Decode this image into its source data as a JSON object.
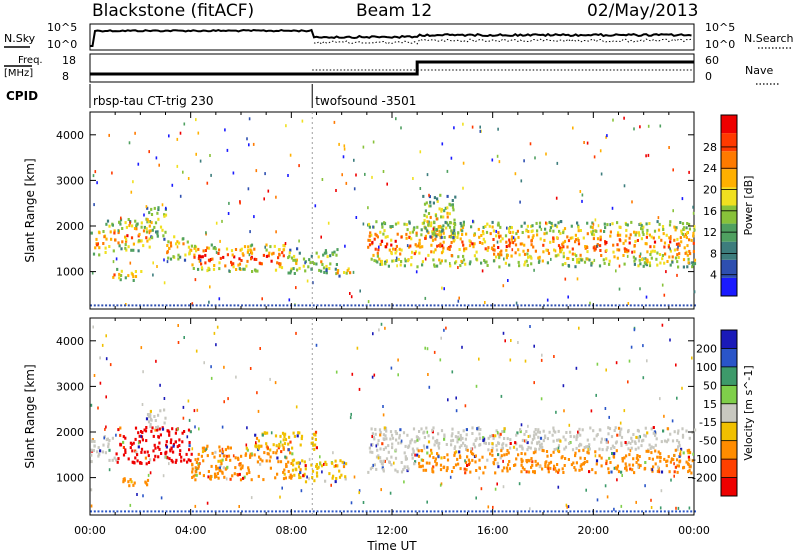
{
  "header": {
    "station": "Blackstone (fitACF)",
    "beam": "Beam 12",
    "date": "02/May/2013"
  },
  "top_panels": {
    "nsky_label": "N.Sky",
    "nsearch_label": "N.Search",
    "freq_label_1": "Freq.",
    "freq_label_2": "[MHz]",
    "nave_label": "Nave",
    "cpid_label": "CPID",
    "noise_ticks_left": [
      "10^5",
      "10^0"
    ],
    "noise_ticks_right": [
      "10^5",
      "10^0"
    ],
    "freq_ticks_left": [
      "18",
      "8"
    ],
    "nave_ticks_right": [
      "60",
      "0"
    ],
    "cpid_segments": [
      {
        "name": "rbsp-tau CT-trig 230",
        "start_hour": 0.0,
        "end_hour": 8.83
      },
      {
        "name": "twofsound -3501",
        "start_hour": 8.83,
        "end_hour": 24.0
      }
    ]
  },
  "chart_data": [
    {
      "type": "heatmap",
      "title": "",
      "xlabel": "Time UT",
      "ylabel": "Slant Range [km]",
      "x_ticks": [
        "00:00",
        "04:00",
        "08:00",
        "12:00",
        "16:00",
        "20:00",
        "00:00"
      ],
      "y_ticks": [
        "1000",
        "2000",
        "3000",
        "4000"
      ],
      "xlim": [
        0,
        24
      ],
      "ylim": [
        180,
        4500
      ],
      "colorbar": {
        "label": "Power [dB]",
        "ticks": [
          "4",
          "8",
          "12",
          "16",
          "20",
          "24",
          "28"
        ],
        "colors": [
          "#1a1aff",
          "#2e4fb0",
          "#3d7d7d",
          "#4fa060",
          "#88c23a",
          "#f0e020",
          "#ffb000",
          "#ff7a00",
          "#ff3a00",
          "#ee0000"
        ]
      },
      "echo_regions": [
        {
          "t0": 0.0,
          "t1": 0.6,
          "r0": 1350,
          "r1": 1900,
          "level": 0.75
        },
        {
          "t0": 0.6,
          "t1": 2.4,
          "r0": 1450,
          "r1": 2150,
          "level": 0.7
        },
        {
          "t0": 2.2,
          "t1": 3.0,
          "r0": 1700,
          "r1": 2450,
          "level": 0.55
        },
        {
          "t0": 3.0,
          "t1": 4.0,
          "r0": 1250,
          "r1": 1800,
          "level": 0.7
        },
        {
          "t0": 4.0,
          "t1": 7.8,
          "r0": 1000,
          "r1": 1600,
          "level": 0.85
        },
        {
          "t0": 7.8,
          "t1": 9.8,
          "r0": 950,
          "r1": 1500,
          "level": 0.5
        },
        {
          "t0": 0.8,
          "t1": 2.0,
          "r0": 800,
          "r1": 1050,
          "level": 0.6
        },
        {
          "t0": 9.6,
          "t1": 10.4,
          "r0": 900,
          "r1": 1100,
          "level": 0.65
        },
        {
          "t0": 11.0,
          "t1": 13.0,
          "r0": 1100,
          "r1": 2100,
          "level": 0.75
        },
        {
          "t0": 13.0,
          "t1": 24.0,
          "r0": 1100,
          "r1": 2100,
          "level": 0.72
        },
        {
          "t0": 13.2,
          "t1": 14.5,
          "r0": 1700,
          "r1": 2700,
          "level": 0.55
        }
      ]
    },
    {
      "type": "heatmap",
      "title": "",
      "xlabel": "Time UT",
      "ylabel": "Slant Range [km]",
      "x_ticks": [
        "00:00",
        "04:00",
        "08:00",
        "12:00",
        "16:00",
        "20:00",
        "00:00"
      ],
      "y_ticks": [
        "1000",
        "2000",
        "3000",
        "4000"
      ],
      "xlim": [
        0,
        24
      ],
      "ylim": [
        180,
        4500
      ],
      "colorbar": {
        "label": "Velocity [m s^-1]",
        "ticks": [
          "200",
          "100",
          "50",
          "15",
          "-15",
          "-50",
          "-100",
          "-200"
        ],
        "colors": [
          "#1a1ab8",
          "#2a55c8",
          "#3d9a6a",
          "#7fcf4a",
          "#c8c8c0",
          "#f0c000",
          "#ff8c00",
          "#ff4000",
          "#ee0000"
        ]
      },
      "echo_regions": [
        {
          "t0": 0.0,
          "t1": 1.0,
          "r0": 1350,
          "r1": 1900,
          "color": "#c8c8c0"
        },
        {
          "t0": 1.0,
          "t1": 4.0,
          "r0": 1300,
          "r1": 2100,
          "color": "#ee0000"
        },
        {
          "t0": 2.2,
          "t1": 3.0,
          "r0": 2050,
          "r1": 2500,
          "color": "#c8c8c0"
        },
        {
          "t0": 4.0,
          "t1": 8.0,
          "r0": 950,
          "r1": 1700,
          "color": "#ff8c00"
        },
        {
          "t0": 1.0,
          "t1": 2.3,
          "r0": 800,
          "r1": 1000,
          "color": "#ff8c00"
        },
        {
          "t0": 6.5,
          "t1": 9.0,
          "r0": 1600,
          "r1": 2000,
          "color": "#f0c000"
        },
        {
          "t0": 8.0,
          "t1": 10.2,
          "r0": 900,
          "r1": 1400,
          "color": "#f0c000"
        },
        {
          "t0": 11.0,
          "t1": 13.0,
          "r0": 1100,
          "r1": 2100,
          "color": "#c8c8c0"
        },
        {
          "t0": 13.0,
          "t1": 24.0,
          "r0": 1600,
          "r1": 2100,
          "color": "#c8c8c0"
        },
        {
          "t0": 13.0,
          "t1": 24.0,
          "r0": 1100,
          "r1": 1600,
          "color": "#ff8c00"
        }
      ]
    }
  ]
}
